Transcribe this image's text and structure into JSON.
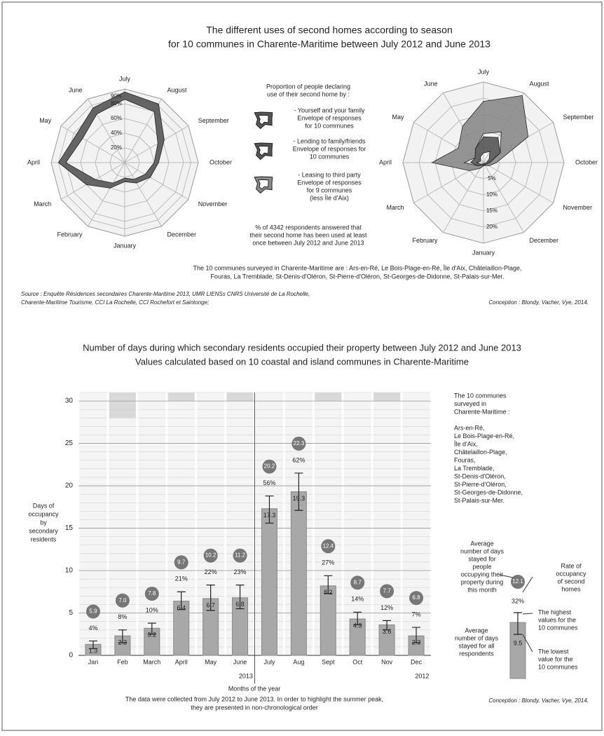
{
  "title": "The different uses of second homes according to season",
  "subtitle": "for 10 communes in Charente-Maritime between July 2012 and June 2013",
  "legend": {
    "heading": [
      "Proportion of people declaring",
      "use of their second home by :"
    ],
    "items": [
      [
        "Envelope of responses",
        "for 10 communes"
      ],
      [
        "Envelope of responses for",
        "10 communes"
      ],
      [
        "Envelope of responses",
        "for 9 communes",
        "(less Île d'Aix)"
      ]
    ]
  },
  "respondents_note": [
    "% of 4342 respondents answered that",
    "their second home has been used at least",
    "once between July 2012 and June 2013"
  ],
  "communes_note": [
    "The 10 communes surveyed in Charente-Maritime are : Ars-en-Ré, Le Bois-Plage-en-Ré, Île d'Aix, Châtelaillon-Plage,",
    "Fouras, La Tremblade, St-Denis-d'Oléron, St-Pierre-d'Oléron, St-Georges-de-Didonne, St-Palais-sur-Mer."
  ],
  "source": [
    "Source : Enquête Résidences secondaires Charente-Maritime 2013, UMR LIENSs CNRS Université de La Rochelle,",
    "Charente-Maritime Tourisme, CCI La Rochelle, CCI Rochefort et Saintonge;"
  ],
  "conception_top": "Conception : Blondy, Vacher, Vye, 2014.",
  "chart_data": [
    {
      "type": "radar",
      "categories": [
        "July",
        "August",
        "September",
        "October",
        "November",
        "December",
        "January",
        "February",
        "March",
        "April",
        "May",
        "June"
      ],
      "rlim": [
        0,
        100
      ],
      "rticks": [
        {
          "value": 20,
          "label": "20%"
        },
        {
          "value": 40,
          "label": "40%"
        },
        {
          "value": 60,
          "label": "60%"
        },
        {
          "value": 80,
          "label": "80%"
        },
        {
          "value": 90,
          "label": "90%"
        }
      ],
      "series": [
        {
          "name": "- Yourself and your family",
          "color": "#555555",
          "high": [
            96,
            92,
            62,
            46,
            40,
            32,
            26,
            40,
            60,
            90,
            76,
            86
          ],
          "low": [
            86,
            80,
            52,
            40,
            32,
            26,
            21,
            32,
            46,
            80,
            66,
            76
          ]
        }
      ]
    },
    {
      "type": "radar",
      "categories": [
        "July",
        "August",
        "September",
        "October",
        "November",
        "December",
        "January",
        "February",
        "March",
        "April",
        "May",
        "June"
      ],
      "rlim": [
        0,
        25
      ],
      "rticks": [
        {
          "value": 5,
          "label": "5%"
        },
        {
          "value": 10,
          "label": "10%"
        },
        {
          "value": 15,
          "label": "15%"
        },
        {
          "value": 20,
          "label": "20%"
        }
      ],
      "series": [
        {
          "name": "- Leasing to third party",
          "color": "#8a8a8a",
          "high": [
            19,
            24,
            16,
            4,
            2,
            1,
            1,
            2,
            5,
            16,
            9,
            13
          ],
          "low": [
            9,
            11,
            6,
            1.5,
            1,
            0.5,
            0.5,
            1,
            2,
            6,
            3,
            5
          ]
        },
        {
          "name": "- Lending to family/friends",
          "color": "#555555",
          "high": [
            8,
            9,
            6,
            2,
            1,
            0.8,
            0.8,
            1,
            2,
            4,
            3,
            5
          ],
          "low": [
            3,
            4,
            2,
            1,
            0.5,
            0.3,
            0.3,
            0.5,
            1,
            2,
            1,
            2
          ]
        }
      ]
    },
    {
      "type": "bar",
      "title": "Number of days during which secondary residents occupied their property between July 2012 and June 2013",
      "subtitle": "Values calculated based on 10 coastal and island communes in Charente-Maritime",
      "categories": [
        "Jan",
        "Feb",
        "March",
        "April",
        "May",
        "June",
        "July",
        "Aug",
        "Sept",
        "Oct",
        "Nov",
        "Dec"
      ],
      "values": [
        1.3,
        2.3,
        3.2,
        6.4,
        6.7,
        6.8,
        17.3,
        19.3,
        8.2,
        4.3,
        3.6,
        2.3
      ],
      "error_high": [
        1.7,
        3.0,
        3.8,
        7.5,
        8.3,
        8.3,
        18.8,
        21.5,
        9.4,
        5.1,
        4.1,
        3.3
      ],
      "error_low": [
        0.8,
        1.5,
        2.5,
        5.4,
        5.3,
        5.5,
        15.6,
        17.1,
        7.3,
        3.6,
        3.0,
        1.5
      ],
      "rates": [
        4,
        8,
        10,
        21,
        22,
        23,
        56,
        62,
        27,
        14,
        12,
        7
      ],
      "rate_labels": [
        "4%",
        "8%",
        "10%",
        "21%",
        "22%",
        "23%",
        "56%",
        "62%",
        "27%",
        "14%",
        "12%",
        "7%"
      ],
      "occupying_days": [
        5.9,
        7.0,
        7.8,
        9.7,
        10.2,
        11.2,
        20.2,
        22.3,
        12.4,
        8.7,
        7.7,
        6.8
      ],
      "occupying_labels": [
        "5.9",
        "7.0",
        "7.8",
        "9.7",
        "10.2",
        "11.2",
        "20.2",
        "22.3",
        "12.4",
        "8.7",
        "7.7",
        "6.8"
      ],
      "days_in_month": [
        31,
        28,
        31,
        30,
        31,
        30,
        31,
        31,
        30,
        31,
        30,
        31
      ],
      "color": "#a8a8a8",
      "ylim": [
        0,
        31
      ],
      "yticks": [
        0,
        5,
        10,
        15,
        20,
        25,
        30
      ],
      "grid": true,
      "years": [
        "2013",
        "2012"
      ],
      "ylabel": [
        "Days of",
        "occupancy",
        "by",
        "secondary",
        "residents"
      ],
      "xlabel": "Months of the year",
      "note": [
        "The data were collected from July 2012 to June 2013. In order to highlight the summer peak,",
        "they are presented in non-chronological order"
      ],
      "communes": [
        "The 10 communes",
        "surveyed in",
        "Charente-Maritime :",
        "",
        "Ars-en-Ré,",
        "Le Bois-Plage-en-Ré,",
        "Île d'Aix,",
        "Châtelaillon-Plage,",
        "Fouras,",
        "La Tremblade,",
        "St-Denis-d'Oléron,",
        "St-Pierre-d'Oléron,",
        "St-Georges-de-Didonne,",
        "St-Palais-sur-Mer."
      ],
      "key": {
        "occupying_text": [
          "Average",
          "number of days",
          "stayed for",
          "people",
          "occupying their",
          "property during",
          "this month"
        ],
        "occupying_value": "12.1",
        "rate_text": [
          "Rate of",
          "occupancy",
          "of second",
          "homes"
        ],
        "rate_value": "32%",
        "high_text": [
          "The highest",
          "values for the",
          "10 communes"
        ],
        "mean_text": [
          "Average",
          "number of days",
          "stayed for all",
          "respondents"
        ],
        "mean_value": "9.5",
        "low_text": [
          "The lowest",
          "value for the",
          "10 communes"
        ]
      },
      "conception": "Conception : Blondy, Vacher, Vye, 2014."
    }
  ]
}
